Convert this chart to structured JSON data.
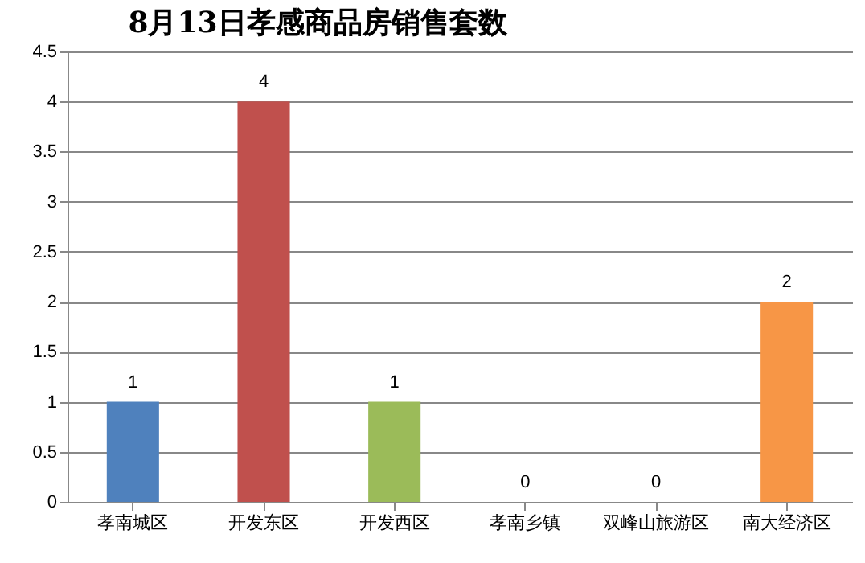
{
  "chart_data": {
    "type": "bar",
    "title": "8月13日孝感商品房销售套数",
    "categories": [
      "孝南城区",
      "开发东区",
      "开发西区",
      "孝南乡镇",
      "双峰山旅游区",
      "南大经济区"
    ],
    "values": [
      1,
      4,
      1,
      0,
      0,
      2
    ],
    "colors": [
      "#4f81bd",
      "#c0504d",
      "#9bbb59",
      "#8064a2",
      "#4bacc6",
      "#f79646"
    ],
    "ylim": [
      0,
      4.5
    ],
    "yticks": [
      0,
      0.5,
      1,
      1.5,
      2,
      2.5,
      3,
      3.5,
      4,
      4.5
    ],
    "grid": "y",
    "data_labels": true
  }
}
